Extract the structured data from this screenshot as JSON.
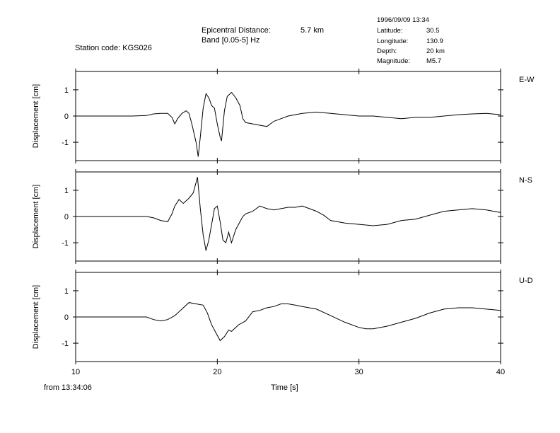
{
  "header": {
    "station_label": "Station code:",
    "station_code": "KGS026",
    "epicentral_label": "Epicentral Distance:",
    "epicentral_value": "5.7 km",
    "band": "Band [0.05-5] Hz",
    "datetime": "1996/09/09 13:34",
    "latitude_label": "Latitude:",
    "latitude": "30.5",
    "longitude_label": "Longitude:",
    "longitude": "130.9",
    "depth_label": "Depth:",
    "depth": "20 km",
    "magnitude_label": "Magnitude:",
    "magnitude": "M5.7"
  },
  "footer": {
    "from_label": "from 13:34:06",
    "x_axis_label": "Time [s]"
  },
  "chart_data": [
    {
      "type": "line",
      "component": "E-W",
      "ylabel": "Displacement [cm]",
      "xlim": [
        10,
        40
      ],
      "ylim": [
        -1.7,
        1.7
      ],
      "yticks": [
        1,
        0,
        -1
      ],
      "points": [
        [
          10,
          0
        ],
        [
          14,
          0
        ],
        [
          15,
          0.02
        ],
        [
          15.5,
          0.08
        ],
        [
          16,
          0.1
        ],
        [
          16.5,
          0.1
        ],
        [
          16.8,
          -0.05
        ],
        [
          17,
          -0.3
        ],
        [
          17.2,
          -0.1
        ],
        [
          17.5,
          0.1
        ],
        [
          17.8,
          0.2
        ],
        [
          18,
          0.1
        ],
        [
          18.2,
          -0.3
        ],
        [
          18.5,
          -1.0
        ],
        [
          18.65,
          -1.55
        ],
        [
          18.8,
          -0.8
        ],
        [
          19,
          0.3
        ],
        [
          19.2,
          0.85
        ],
        [
          19.4,
          0.7
        ],
        [
          19.6,
          0.4
        ],
        [
          19.8,
          0.3
        ],
        [
          20,
          -0.3
        ],
        [
          20.2,
          -0.8
        ],
        [
          20.3,
          -0.95
        ],
        [
          20.5,
          0.2
        ],
        [
          20.7,
          0.75
        ],
        [
          21,
          0.9
        ],
        [
          21.3,
          0.7
        ],
        [
          21.6,
          0.4
        ],
        [
          21.8,
          -0.1
        ],
        [
          22,
          -0.25
        ],
        [
          22.5,
          -0.3
        ],
        [
          23,
          -0.35
        ],
        [
          23.5,
          -0.4
        ],
        [
          24,
          -0.2
        ],
        [
          24.5,
          -0.1
        ],
        [
          25,
          0.0
        ],
        [
          25.5,
          0.05
        ],
        [
          26,
          0.1
        ],
        [
          27,
          0.15
        ],
        [
          28,
          0.1
        ],
        [
          29,
          0.05
        ],
        [
          30,
          0.0
        ],
        [
          31,
          0.0
        ],
        [
          32,
          -0.05
        ],
        [
          33,
          -0.1
        ],
        [
          34,
          -0.05
        ],
        [
          35,
          -0.05
        ],
        [
          36,
          0.0
        ],
        [
          37,
          0.05
        ],
        [
          38,
          0.08
        ],
        [
          39,
          0.1
        ],
        [
          40,
          0.05
        ]
      ]
    },
    {
      "type": "line",
      "component": "N-S",
      "ylabel": "Displacement [cm]",
      "xlim": [
        10,
        40
      ],
      "ylim": [
        -1.7,
        1.7
      ],
      "yticks": [
        1,
        0,
        -1
      ],
      "points": [
        [
          10,
          0
        ],
        [
          15,
          0
        ],
        [
          15.5,
          -0.05
        ],
        [
          16,
          -0.15
        ],
        [
          16.5,
          -0.2
        ],
        [
          16.8,
          0.1
        ],
        [
          17,
          0.4
        ],
        [
          17.3,
          0.65
        ],
        [
          17.6,
          0.5
        ],
        [
          18,
          0.7
        ],
        [
          18.3,
          0.9
        ],
        [
          18.6,
          1.5
        ],
        [
          18.8,
          0.3
        ],
        [
          19,
          -0.7
        ],
        [
          19.2,
          -1.3
        ],
        [
          19.4,
          -0.9
        ],
        [
          19.6,
          -0.3
        ],
        [
          19.8,
          0.3
        ],
        [
          20,
          0.4
        ],
        [
          20.2,
          -0.2
        ],
        [
          20.4,
          -0.9
        ],
        [
          20.6,
          -1.0
        ],
        [
          20.8,
          -0.6
        ],
        [
          21,
          -1.0
        ],
        [
          21.3,
          -0.5
        ],
        [
          21.6,
          -0.2
        ],
        [
          21.8,
          0.0
        ],
        [
          22,
          0.1
        ],
        [
          22.5,
          0.2
        ],
        [
          23,
          0.4
        ],
        [
          23.5,
          0.3
        ],
        [
          24,
          0.25
        ],
        [
          24.5,
          0.3
        ],
        [
          25,
          0.35
        ],
        [
          25.5,
          0.35
        ],
        [
          26,
          0.4
        ],
        [
          26.5,
          0.3
        ],
        [
          27,
          0.2
        ],
        [
          27.5,
          0.05
        ],
        [
          28,
          -0.15
        ],
        [
          29,
          -0.25
        ],
        [
          30,
          -0.3
        ],
        [
          31,
          -0.35
        ],
        [
          32,
          -0.3
        ],
        [
          33,
          -0.15
        ],
        [
          34,
          -0.1
        ],
        [
          35,
          0.05
        ],
        [
          36,
          0.2
        ],
        [
          37,
          0.25
        ],
        [
          38,
          0.3
        ],
        [
          39,
          0.25
        ],
        [
          40,
          0.15
        ]
      ]
    },
    {
      "type": "line",
      "component": "U-D",
      "ylabel": "Displacement [cm]",
      "xlim": [
        10,
        40
      ],
      "ylim": [
        -1.7,
        1.7
      ],
      "yticks": [
        1,
        0,
        -1
      ],
      "points": [
        [
          10,
          0
        ],
        [
          15,
          0
        ],
        [
          15.5,
          -0.1
        ],
        [
          16,
          -0.15
        ],
        [
          16.5,
          -0.1
        ],
        [
          17,
          0.05
        ],
        [
          17.5,
          0.3
        ],
        [
          18,
          0.55
        ],
        [
          18.5,
          0.5
        ],
        [
          19,
          0.45
        ],
        [
          19.3,
          0.15
        ],
        [
          19.6,
          -0.3
        ],
        [
          19.9,
          -0.6
        ],
        [
          20.2,
          -0.9
        ],
        [
          20.5,
          -0.75
        ],
        [
          20.8,
          -0.5
        ],
        [
          21,
          -0.55
        ],
        [
          21.5,
          -0.3
        ],
        [
          22,
          -0.15
        ],
        [
          22.5,
          0.2
        ],
        [
          23,
          0.25
        ],
        [
          23.5,
          0.35
        ],
        [
          24,
          0.4
        ],
        [
          24.5,
          0.5
        ],
        [
          25,
          0.5
        ],
        [
          25.5,
          0.45
        ],
        [
          26,
          0.4
        ],
        [
          27,
          0.3
        ],
        [
          28,
          0.05
        ],
        [
          29,
          -0.2
        ],
        [
          30,
          -0.4
        ],
        [
          30.5,
          -0.45
        ],
        [
          31,
          -0.45
        ],
        [
          32,
          -0.35
        ],
        [
          33,
          -0.2
        ],
        [
          34,
          -0.05
        ],
        [
          35,
          0.15
        ],
        [
          36,
          0.3
        ],
        [
          37,
          0.35
        ],
        [
          38,
          0.35
        ],
        [
          39,
          0.3
        ],
        [
          40,
          0.25
        ]
      ]
    }
  ],
  "x_ticks": [
    10,
    20,
    30,
    40
  ]
}
